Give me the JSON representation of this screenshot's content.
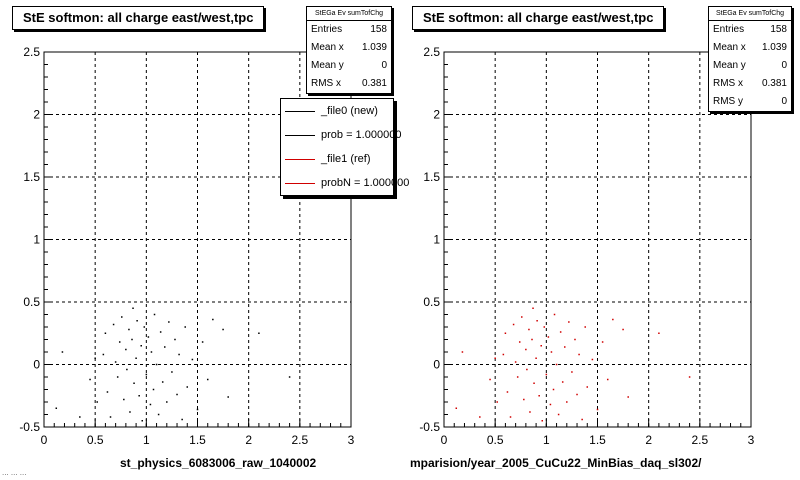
{
  "panels": [
    {
      "title": "StE softmon: all charge east/west,tpc",
      "stats": {
        "name": "StEGa Ev sumTofChg",
        "rows": [
          {
            "label": "Entries",
            "value": "158"
          },
          {
            "label": "Mean x",
            "value": "1.039"
          },
          {
            "label": "Mean y",
            "value": "0"
          },
          {
            "label": "RMS x",
            "value": "0.381"
          }
        ]
      },
      "legend": [
        {
          "label": "_file0 (new)",
          "color": "#000000"
        },
        {
          "label": "prob = 1.000000",
          "color": "#000000"
        },
        {
          "label": "_file1 (ref)",
          "color": "#d00000"
        },
        {
          "label": "probN = 1.000000",
          "color": "#d00000"
        }
      ],
      "xtitle": "st_physics_6083006_raw_1040002"
    },
    {
      "title": "StE softmon: all charge east/west,tpc",
      "stats": {
        "name": "StEGa Ev sumTofChg",
        "rows": [
          {
            "label": "Entries",
            "value": "158"
          },
          {
            "label": "Mean x",
            "value": "1.039"
          },
          {
            "label": "Mean y",
            "value": "0"
          },
          {
            "label": "RMS x",
            "value": "0.381"
          },
          {
            "label": "RMS y",
            "value": "0"
          }
        ]
      },
      "xtitle": "mparision/year_2005_CuCu22_MinBias_daq_sl302/"
    }
  ],
  "footer_note": "... ... ...",
  "chart_data": [
    {
      "type": "scatter",
      "title": "StE softmon: all charge east/west,tpc",
      "xlabel": "st_physics_6083006_raw_1040002",
      "ylabel": "",
      "xlim": [
        0,
        3
      ],
      "ylim": [
        -0.5,
        2.5
      ],
      "xticks": [
        "0",
        "0.5",
        "1",
        "1.5",
        "2",
        "2.5",
        "3"
      ],
      "yticks": [
        "-0.5",
        "0",
        "0.5",
        "1",
        "1.5",
        "2",
        "2.5"
      ],
      "grid": true,
      "legend_position": "top-right",
      "series": [
        {
          "name": "_file0 (new)",
          "color": "#000000",
          "points": [
            [
              0.12,
              -0.35
            ],
            [
              0.45,
              -0.12
            ],
            [
              0.5,
              0.05
            ],
            [
              0.52,
              -0.3
            ],
            [
              0.58,
              0.08
            ],
            [
              0.6,
              0.25
            ],
            [
              0.62,
              -0.22
            ],
            [
              0.65,
              -0.42
            ],
            [
              0.68,
              0.32
            ],
            [
              0.7,
              0.02
            ],
            [
              0.72,
              -0.1
            ],
            [
              0.74,
              0.18
            ],
            [
              0.76,
              0.38
            ],
            [
              0.78,
              -0.28
            ],
            [
              0.8,
              0.12
            ],
            [
              0.81,
              -0.04
            ],
            [
              0.83,
              0.28
            ],
            [
              0.84,
              -0.38
            ],
            [
              0.86,
              0.2
            ],
            [
              0.87,
              0.45
            ],
            [
              0.88,
              -0.15
            ],
            [
              0.9,
              0.05
            ],
            [
              0.91,
              0.35
            ],
            [
              0.93,
              -0.25
            ],
            [
              0.95,
              0.15
            ],
            [
              0.96,
              -0.45
            ],
            [
              0.98,
              0.3
            ],
            [
              1.0,
              -0.08
            ],
            [
              1.02,
              0.22
            ],
            [
              1.04,
              -0.32
            ],
            [
              1.05,
              0.1
            ],
            [
              1.07,
              -0.2
            ],
            [
              1.08,
              0.4
            ],
            [
              1.1,
              0.0
            ],
            [
              1.12,
              -0.4
            ],
            [
              1.14,
              0.26
            ],
            [
              1.16,
              -0.14
            ],
            [
              1.18,
              0.14
            ],
            [
              1.2,
              -0.3
            ],
            [
              1.22,
              0.34
            ],
            [
              1.25,
              -0.06
            ],
            [
              1.28,
              0.2
            ],
            [
              1.3,
              -0.24
            ],
            [
              1.32,
              0.08
            ],
            [
              1.35,
              -0.44
            ],
            [
              1.38,
              0.3
            ],
            [
              1.4,
              -0.18
            ],
            [
              1.45,
              0.04
            ],
            [
              1.5,
              -0.36
            ],
            [
              1.55,
              0.18
            ],
            [
              1.6,
              -0.12
            ],
            [
              1.65,
              0.36
            ],
            [
              1.75,
              0.28
            ],
            [
              1.8,
              -0.26
            ],
            [
              2.1,
              0.25
            ],
            [
              2.4,
              -0.1
            ],
            [
              0.18,
              0.1
            ],
            [
              0.35,
              -0.42
            ]
          ]
        }
      ]
    },
    {
      "type": "scatter",
      "title": "StE softmon: all charge east/west,tpc",
      "xlabel": "mparision/year_2005_CuCu22_MinBias_daq_sl302/",
      "ylabel": "",
      "xlim": [
        0,
        3
      ],
      "ylim": [
        -0.5,
        2.5
      ],
      "xticks": [
        "0",
        "0.5",
        "1",
        "1.5",
        "2",
        "2.5",
        "3"
      ],
      "yticks": [
        "-0.5",
        "0",
        "0.5",
        "1",
        "1.5",
        "2",
        "2.5"
      ],
      "grid": true,
      "series": [
        {
          "name": "_file1 (ref)",
          "color": "#d00000",
          "points": [
            [
              0.12,
              -0.35
            ],
            [
              0.45,
              -0.12
            ],
            [
              0.5,
              0.05
            ],
            [
              0.52,
              -0.3
            ],
            [
              0.58,
              0.08
            ],
            [
              0.6,
              0.25
            ],
            [
              0.62,
              -0.22
            ],
            [
              0.65,
              -0.42
            ],
            [
              0.68,
              0.32
            ],
            [
              0.7,
              0.02
            ],
            [
              0.72,
              -0.1
            ],
            [
              0.74,
              0.18
            ],
            [
              0.76,
              0.38
            ],
            [
              0.78,
              -0.28
            ],
            [
              0.8,
              0.12
            ],
            [
              0.81,
              -0.04
            ],
            [
              0.83,
              0.28
            ],
            [
              0.84,
              -0.38
            ],
            [
              0.86,
              0.2
            ],
            [
              0.87,
              0.45
            ],
            [
              0.88,
              -0.15
            ],
            [
              0.9,
              0.05
            ],
            [
              0.91,
              0.35
            ],
            [
              0.93,
              -0.25
            ],
            [
              0.95,
              0.15
            ],
            [
              0.96,
              -0.45
            ],
            [
              0.98,
              0.3
            ],
            [
              1.0,
              -0.08
            ],
            [
              1.02,
              0.22
            ],
            [
              1.04,
              -0.32
            ],
            [
              1.05,
              0.1
            ],
            [
              1.07,
              -0.2
            ],
            [
              1.08,
              0.4
            ],
            [
              1.1,
              0.0
            ],
            [
              1.12,
              -0.4
            ],
            [
              1.14,
              0.26
            ],
            [
              1.16,
              -0.14
            ],
            [
              1.18,
              0.14
            ],
            [
              1.2,
              -0.3
            ],
            [
              1.22,
              0.34
            ],
            [
              1.25,
              -0.06
            ],
            [
              1.28,
              0.2
            ],
            [
              1.3,
              -0.24
            ],
            [
              1.32,
              0.08
            ],
            [
              1.35,
              -0.44
            ],
            [
              1.38,
              0.3
            ],
            [
              1.4,
              -0.18
            ],
            [
              1.45,
              0.04
            ],
            [
              1.5,
              -0.36
            ],
            [
              1.55,
              0.18
            ],
            [
              1.6,
              -0.12
            ],
            [
              1.65,
              0.36
            ],
            [
              1.75,
              0.28
            ],
            [
              1.8,
              -0.26
            ],
            [
              2.1,
              0.25
            ],
            [
              2.4,
              -0.1
            ],
            [
              0.18,
              0.1
            ],
            [
              0.35,
              -0.42
            ]
          ]
        }
      ]
    }
  ]
}
